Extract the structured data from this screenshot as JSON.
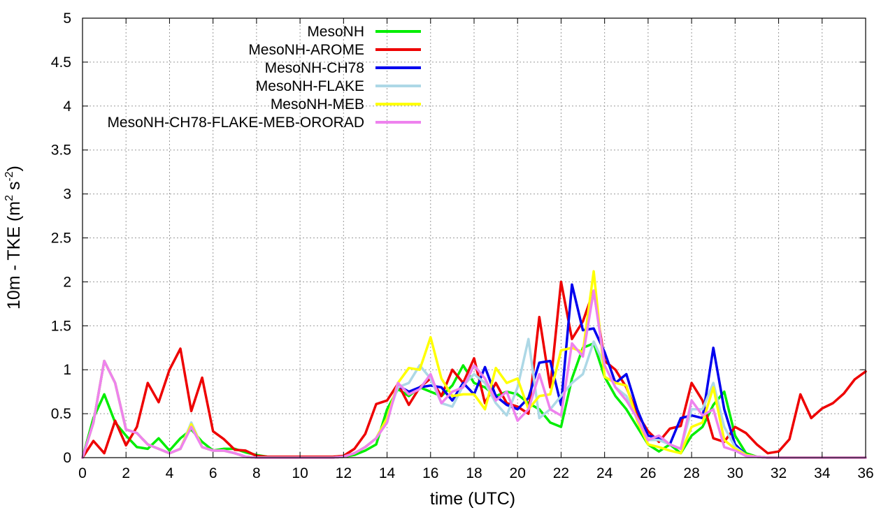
{
  "chart_data": {
    "type": "line",
    "title": "",
    "xlabel": "time (UTC)",
    "ylabel": {
      "base": "10m - TKE (m",
      "sup1": "2",
      "mid": " s",
      "sup2": "-2",
      "end": ")"
    },
    "xlim": [
      0,
      36
    ],
    "ylim": [
      0,
      5
    ],
    "xticks": [
      0,
      2,
      4,
      6,
      8,
      10,
      12,
      14,
      16,
      18,
      20,
      22,
      24,
      26,
      28,
      30,
      32,
      34,
      36
    ],
    "yticks": [
      0,
      0.5,
      1,
      1.5,
      2,
      2.5,
      3,
      3.5,
      4,
      4.5,
      5
    ],
    "ytick_labels": [
      "0",
      "0.5",
      "1",
      "1.5",
      "2",
      "2.5",
      "3",
      "3.5",
      "4",
      "4.5",
      "5"
    ],
    "grid": true,
    "legend_position": "top-left",
    "x": [
      0,
      0.5,
      1,
      1.5,
      2,
      2.5,
      3,
      3.5,
      4,
      4.5,
      5,
      5.5,
      6,
      6.5,
      7,
      7.5,
      8,
      8.5,
      9,
      9.5,
      10,
      10.5,
      11,
      11.5,
      12,
      12.5,
      13,
      13.5,
      14,
      14.5,
      15,
      15.5,
      16,
      16.5,
      17,
      17.5,
      18,
      18.5,
      19,
      19.5,
      20,
      20.5,
      21,
      21.5,
      22,
      22.5,
      23,
      23.5,
      24,
      24.5,
      25,
      25.5,
      26,
      26.5,
      27,
      27.5,
      28,
      28.5,
      29,
      29.5,
      30,
      30.5,
      31,
      31.5,
      32,
      32.5,
      33,
      33.5,
      34,
      34.5,
      35,
      35.5,
      36
    ],
    "series": [
      {
        "name": "MesoNH",
        "color": "#00ee00",
        "values": [
          0,
          0.45,
          0.72,
          0.4,
          0.25,
          0.12,
          0.1,
          0.22,
          0.08,
          0.22,
          0.32,
          0.18,
          0.08,
          0.1,
          0.1,
          0.06,
          0.03,
          0.01,
          0,
          0,
          0,
          0,
          0,
          0,
          0.01,
          0.03,
          0.08,
          0.15,
          0.55,
          0.78,
          0.7,
          0.8,
          0.75,
          0.7,
          0.82,
          1.05,
          0.85,
          0.8,
          0.7,
          0.75,
          0.72,
          0.62,
          0.55,
          0.4,
          0.35,
          0.9,
          1.25,
          1.3,
          0.92,
          0.7,
          0.55,
          0.35,
          0.15,
          0.07,
          0.15,
          0.05,
          0.25,
          0.35,
          0.6,
          0.75,
          0.25,
          0.05,
          0.01,
          0,
          0,
          0,
          0,
          0,
          0,
          0,
          0,
          0,
          0
        ]
      },
      {
        "name": "MesoNH-AROME",
        "color": "#ee0000",
        "values": [
          0,
          0.19,
          0.05,
          0.42,
          0.14,
          0.35,
          0.85,
          0.63,
          1.0,
          1.24,
          0.53,
          0.91,
          0.3,
          0.21,
          0.09,
          0.08,
          0.02,
          0.01,
          0.01,
          0.01,
          0.01,
          0.01,
          0.01,
          0.01,
          0.02,
          0.1,
          0.27,
          0.61,
          0.65,
          0.84,
          0.6,
          0.8,
          0.9,
          0.7,
          1.0,
          0.85,
          1.13,
          0.62,
          0.85,
          0.62,
          0.58,
          0.5,
          1.6,
          0.8,
          2.0,
          1.35,
          1.55,
          1.9,
          1.1,
          1.0,
          0.8,
          0.5,
          0.3,
          0.18,
          0.33,
          0.36,
          0.85,
          0.65,
          0.22,
          0.18,
          0.35,
          0.28,
          0.15,
          0.05,
          0.07,
          0.21,
          0.72,
          0.45,
          0.56,
          0.62,
          0.73,
          0.89,
          0.98
        ]
      },
      {
        "name": "MesoNH-CH78",
        "color": "#0000ee",
        "values": [
          0,
          0.4,
          1.1,
          0.85,
          0.32,
          0.28,
          0.15,
          0.1,
          0.05,
          0.1,
          0.38,
          0.12,
          0.08,
          0.08,
          0.05,
          0.01,
          0,
          0,
          0,
          0,
          0,
          0,
          0,
          0,
          0.01,
          0.05,
          0.12,
          0.22,
          0.45,
          0.82,
          0.75,
          0.8,
          0.82,
          0.8,
          0.65,
          0.85,
          0.72,
          1.03,
          0.7,
          0.6,
          0.55,
          0.68,
          1.08,
          1.1,
          0.6,
          1.97,
          1.45,
          1.47,
          1.2,
          0.85,
          0.95,
          0.55,
          0.25,
          0.22,
          0.15,
          0.45,
          0.48,
          0.45,
          1.25,
          0.55,
          0.15,
          0.03,
          0.01,
          0,
          0,
          0,
          0,
          0,
          0,
          0,
          0,
          0,
          0
        ]
      },
      {
        "name": "MesoNH-FLAKE",
        "color": "#add8e6",
        "values": [
          0,
          0.4,
          1.1,
          0.85,
          0.32,
          0.28,
          0.15,
          0.1,
          0.05,
          0.1,
          0.4,
          0.12,
          0.08,
          0.08,
          0.05,
          0.01,
          0,
          0,
          0,
          0,
          0,
          0,
          0,
          0,
          0.01,
          0.05,
          0.12,
          0.22,
          0.45,
          0.8,
          0.85,
          1.05,
          0.9,
          0.62,
          0.58,
          0.82,
          0.95,
          0.85,
          0.62,
          0.48,
          0.8,
          1.35,
          0.45,
          0.55,
          0.7,
          0.85,
          0.95,
          1.32,
          1.05,
          0.8,
          0.7,
          0.45,
          0.2,
          0.2,
          0.15,
          0.1,
          0.55,
          0.55,
          0.85,
          0.35,
          0.12,
          0.03,
          0.01,
          0,
          0,
          0,
          0,
          0,
          0,
          0,
          0,
          0,
          0
        ]
      },
      {
        "name": "MesoNH-MEB",
        "color": "#ffff00",
        "values": [
          0,
          0.4,
          1.1,
          0.85,
          0.32,
          0.28,
          0.15,
          0.1,
          0.05,
          0.1,
          0.38,
          0.12,
          0.08,
          0.08,
          0.05,
          0.01,
          0,
          0,
          0,
          0,
          0,
          0,
          0,
          0,
          0.01,
          0.05,
          0.12,
          0.22,
          0.45,
          0.85,
          1.02,
          1.0,
          1.37,
          0.9,
          0.7,
          0.72,
          0.72,
          0.55,
          1.02,
          0.85,
          0.9,
          0.55,
          0.7,
          0.72,
          1.22,
          1.25,
          1.2,
          2.12,
          0.92,
          0.85,
          0.82,
          0.42,
          0.15,
          0.12,
          0.08,
          0.05,
          0.35,
          0.4,
          0.8,
          0.2,
          0.1,
          0.03,
          0.01,
          0,
          0,
          0,
          0,
          0,
          0,
          0,
          0,
          0,
          0
        ]
      },
      {
        "name": "MesoNH-CH78-FLAKE-MEB-ORORAD",
        "color": "#ee82ee",
        "values": [
          0,
          0.4,
          1.1,
          0.85,
          0.32,
          0.28,
          0.15,
          0.1,
          0.05,
          0.1,
          0.35,
          0.12,
          0.08,
          0.08,
          0.05,
          0.01,
          0,
          0,
          0,
          0,
          0,
          0,
          0,
          0,
          0.01,
          0.05,
          0.12,
          0.22,
          0.4,
          0.85,
          0.72,
          0.78,
          0.95,
          0.62,
          0.75,
          0.8,
          1.05,
          0.9,
          0.65,
          0.75,
          0.42,
          0.55,
          0.95,
          0.55,
          0.48,
          1.3,
          1.15,
          1.9,
          1.05,
          0.8,
          0.65,
          0.45,
          0.2,
          0.25,
          0.15,
          0.1,
          0.65,
          0.48,
          0.55,
          0.12,
          0.08,
          0.02,
          0.01,
          0,
          0,
          0,
          0,
          0,
          0,
          0,
          0,
          0,
          0
        ]
      }
    ]
  }
}
